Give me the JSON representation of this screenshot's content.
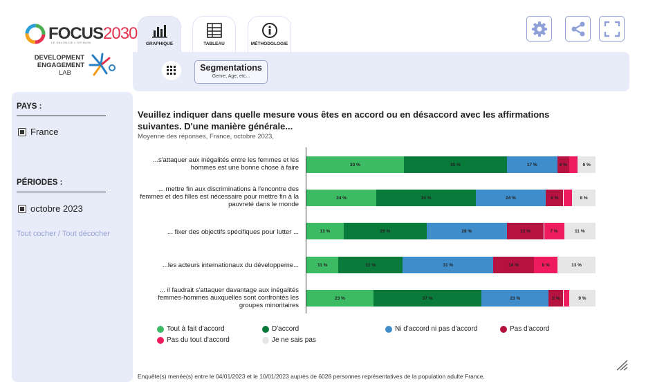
{
  "brand": {
    "focus_word": "FOCUS",
    "focus_year": "2030",
    "focus_tagline": "LE SALON DE L'OPINION",
    "del_lines": [
      "DEVELOPMENT",
      "ENGAGEMENT",
      "LAB"
    ]
  },
  "tabs": [
    {
      "label": "GRAPHIQUE",
      "icon": "bar-chart-icon",
      "active": true
    },
    {
      "label": "TABLEAU",
      "icon": "table-icon",
      "active": false
    },
    {
      "label": "MÉTHODOLOGIE",
      "icon": "info-icon",
      "active": false
    }
  ],
  "toolbar": {
    "settings_icon": "gear-icon",
    "share_icon": "share-icon",
    "fullscreen_icon": "fullscreen-icon"
  },
  "segmentation": {
    "icon": "grid-icon",
    "title": "Segmentations",
    "subtitle": "Genre, Age, etc..."
  },
  "sidebar": {
    "pays_heading": "PAYS :",
    "pays_option": "France",
    "periodes_heading": "PÉRIODES :",
    "periode_option": "octobre 2023",
    "toggle_all": "Tout cocher / Tout décocher"
  },
  "colors": {
    "tout_accord": "#3cba64",
    "accord": "#0a7a3a",
    "ni": "#3f8dcb",
    "pas_accord": "#b5123f",
    "pas_du_tout": "#ee1c5e",
    "nsp": "#e6e6e6",
    "accent": "#8fa0d8"
  },
  "chart_data": {
    "type": "bar",
    "orientation": "horizontal-stacked",
    "title": "Veuillez indiquer dans quelle mesure vous êtes en accord ou en désaccord avec les affirmations suivantes. D'une manière générale...",
    "subtitle": "Moyenne des réponses, France, octobre 2023,",
    "categories": [
      "...s'attaquer aux inégalités entre les femmes et les hommes est une bonne chose à faire",
      "... mettre fin aux discriminations à l'encontre des femmes et des filles est nécessaire pour mettre fin à la pauvreté dans le monde",
      "... fixer des objectifs spécifiques pour lutter ...",
      "...les acteurs internationaux du développeme...",
      "... il faudrait s'attaquer davantage aux inégalités femmes-hommes auxquelles sont confrontés les groupes minoritaires"
    ],
    "series": [
      {
        "name": "Tout à fait d'accord",
        "values": [
          33,
          24,
          13,
          11,
          23
        ],
        "labels": [
          "33 %",
          "24 %",
          "13 %",
          "11 %",
          "23 %"
        ]
      },
      {
        "name": "D'accord",
        "values": [
          35,
          34,
          29,
          22,
          37
        ],
        "labels": [
          "35 %",
          "34 %",
          "29 %",
          "22 %",
          "37 %"
        ]
      },
      {
        "name": "Ni d'accord ni pas d'accord",
        "values": [
          17,
          24,
          28,
          31,
          23
        ],
        "labels": [
          "17 %",
          "24 %",
          "28 %",
          "31 %",
          "23 %"
        ]
      },
      {
        "name": "Pas d'accord",
        "values": [
          4,
          6,
          13,
          14,
          5
        ],
        "labels": [
          "4 %",
          "6 %",
          "13 %",
          "14 %",
          "5 %"
        ]
      },
      {
        "name": "Pas du tout d'accord",
        "values": [
          3,
          3,
          7,
          8,
          2
        ],
        "labels": [
          "",
          "",
          "7 %",
          "8 %",
          ""
        ]
      },
      {
        "name": "Je ne sais pas",
        "values": [
          6,
          8,
          11,
          13,
          9
        ],
        "labels": [
          "6 %",
          "8 %",
          "11 %",
          "13 %",
          "9 %"
        ]
      }
    ],
    "xlim": [
      0,
      100
    ],
    "legend_position": "bottom"
  },
  "footnote": "Enquête(s) menée(s) entre le 04/01/2023 et le 10/01/2023 auprès de 6028 personnes représentatives de la population adulte France."
}
